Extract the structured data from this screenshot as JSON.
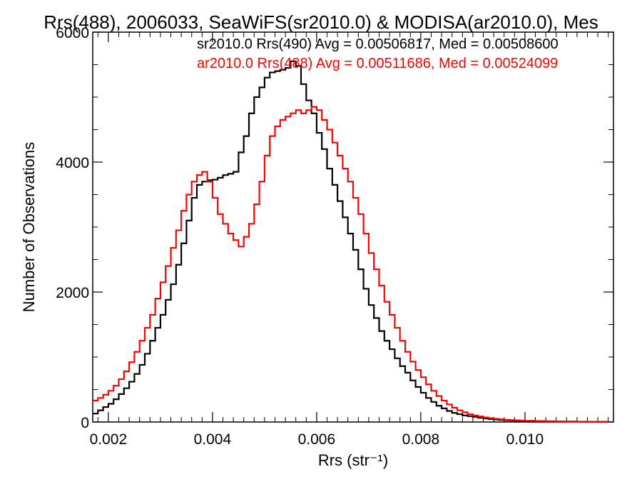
{
  "chart_data": {
    "type": "line",
    "title": "Rrs(488), 2006033, SeaWiFS(sr2010.0) & MODISA(ar2010.0), Mes",
    "xlabel": "Rrs (str⁻¹)",
    "ylabel": "Number of Observations",
    "xlim": [
      0.0017,
      0.0117
    ],
    "ylim": [
      0,
      6000
    ],
    "xticks": [
      0.002,
      0.004,
      0.006,
      0.008,
      0.01
    ],
    "xtick_labels": [
      "0.002",
      "0.004",
      "0.006",
      "0.008",
      "0.010"
    ],
    "yticks": [
      0,
      2000,
      4000,
      6000
    ],
    "ytick_labels": [
      "0",
      "2000",
      "4000",
      "6000"
    ],
    "grid": false,
    "annotations": [
      {
        "text": "sr2010.0 Rrs(490) Avg = 0.00506817, Med = 0.00508600",
        "color": "#000000"
      },
      {
        "text": "ar2010.0 Rrs(488) Avg = 0.00511686, Med = 0.00524099",
        "color": "#ff0000"
      }
    ],
    "series": [
      {
        "color": "#000000",
        "x": [
          0.0017,
          0.0018,
          0.0019,
          0.002,
          0.0021,
          0.0022,
          0.0023,
          0.0024,
          0.0025,
          0.0026,
          0.0027,
          0.0028,
          0.0029,
          0.003,
          0.0031,
          0.0032,
          0.0033,
          0.0034,
          0.0035,
          0.0036,
          0.0037,
          0.0038,
          0.0039,
          0.004,
          0.0041,
          0.0042,
          0.0043,
          0.0044,
          0.0045,
          0.0046,
          0.0047,
          0.0048,
          0.0049,
          0.005,
          0.0051,
          0.0052,
          0.0053,
          0.0054,
          0.0055,
          0.0056,
          0.0057,
          0.0058,
          0.0059,
          0.006,
          0.0061,
          0.0062,
          0.0063,
          0.0064,
          0.0065,
          0.0066,
          0.0067,
          0.0068,
          0.0069,
          0.007,
          0.0071,
          0.0072,
          0.0073,
          0.0074,
          0.0075,
          0.0076,
          0.0077,
          0.0078,
          0.0079,
          0.008,
          0.0081,
          0.0082,
          0.0083,
          0.0084,
          0.0085,
          0.0086,
          0.0087,
          0.0088,
          0.0089,
          0.009,
          0.0091,
          0.0092,
          0.0093,
          0.0094,
          0.0095,
          0.0096,
          0.0097,
          0.0098,
          0.0099,
          0.01,
          0.0102,
          0.0104,
          0.0106,
          0.0108,
          0.011,
          0.0112,
          0.0114,
          0.0116
        ],
        "y": [
          130,
          180,
          230,
          280,
          350,
          430,
          520,
          620,
          740,
          880,
          1050,
          1250,
          1450,
          1650,
          1880,
          2120,
          2420,
          2750,
          3100,
          3450,
          3650,
          3700,
          3720,
          3730,
          3760,
          3800,
          3820,
          3850,
          4150,
          4400,
          4750,
          5000,
          5150,
          5300,
          5380,
          5400,
          5420,
          5450,
          5550,
          5480,
          5200,
          4950,
          4750,
          4450,
          4200,
          3900,
          3650,
          3400,
          3150,
          2900,
          2650,
          2350,
          2050,
          1800,
          1600,
          1400,
          1250,
          1120,
          980,
          860,
          760,
          640,
          540,
          450,
          370,
          310,
          250,
          210,
          170,
          140,
          120,
          100,
          90,
          80,
          65,
          55,
          45,
          38,
          32,
          27,
          23,
          20,
          17,
          15,
          12,
          10,
          8,
          6,
          5,
          4,
          3,
          2
        ]
      },
      {
        "color": "#ff0000",
        "x": [
          0.0017,
          0.0018,
          0.0019,
          0.002,
          0.0021,
          0.0022,
          0.0023,
          0.0024,
          0.0025,
          0.0026,
          0.0027,
          0.0028,
          0.0029,
          0.003,
          0.0031,
          0.0032,
          0.0033,
          0.0034,
          0.0035,
          0.0036,
          0.0037,
          0.0038,
          0.0039,
          0.004,
          0.0041,
          0.0042,
          0.0043,
          0.0044,
          0.0045,
          0.0046,
          0.0047,
          0.0048,
          0.0049,
          0.005,
          0.0051,
          0.0052,
          0.0053,
          0.0054,
          0.0055,
          0.0056,
          0.0057,
          0.0058,
          0.0059,
          0.006,
          0.0061,
          0.0062,
          0.0063,
          0.0064,
          0.0065,
          0.0066,
          0.0067,
          0.0068,
          0.0069,
          0.007,
          0.0071,
          0.0072,
          0.0073,
          0.0074,
          0.0075,
          0.0076,
          0.0077,
          0.0078,
          0.0079,
          0.008,
          0.0081,
          0.0082,
          0.0083,
          0.0084,
          0.0085,
          0.0086,
          0.0087,
          0.0088,
          0.0089,
          0.009,
          0.0091,
          0.0092,
          0.0093,
          0.0094,
          0.0095,
          0.0096,
          0.0097,
          0.0098,
          0.0099,
          0.01,
          0.0102,
          0.0104,
          0.0106,
          0.0108,
          0.011,
          0.0112,
          0.0114,
          0.0116
        ],
        "y": [
          330,
          370,
          420,
          480,
          560,
          660,
          780,
          920,
          1080,
          1250,
          1450,
          1650,
          1900,
          2150,
          2400,
          2680,
          2950,
          3250,
          3500,
          3700,
          3800,
          3850,
          3700,
          3450,
          3200,
          3050,
          2900,
          2800,
          2700,
          2850,
          3050,
          3350,
          3700,
          4100,
          4400,
          4550,
          4650,
          4700,
          4750,
          4800,
          4750,
          4800,
          4850,
          4800,
          4650,
          4500,
          4300,
          4100,
          3900,
          3700,
          3450,
          3200,
          2900,
          2600,
          2350,
          2100,
          1850,
          1650,
          1450,
          1250,
          1080,
          930,
          800,
          690,
          580,
          480,
          400,
          330,
          270,
          220,
          180,
          150,
          120,
          100,
          85,
          70,
          60,
          50,
          42,
          35,
          30,
          26,
          22,
          19,
          15,
          12,
          10,
          8,
          6,
          5,
          4,
          3
        ]
      }
    ]
  }
}
